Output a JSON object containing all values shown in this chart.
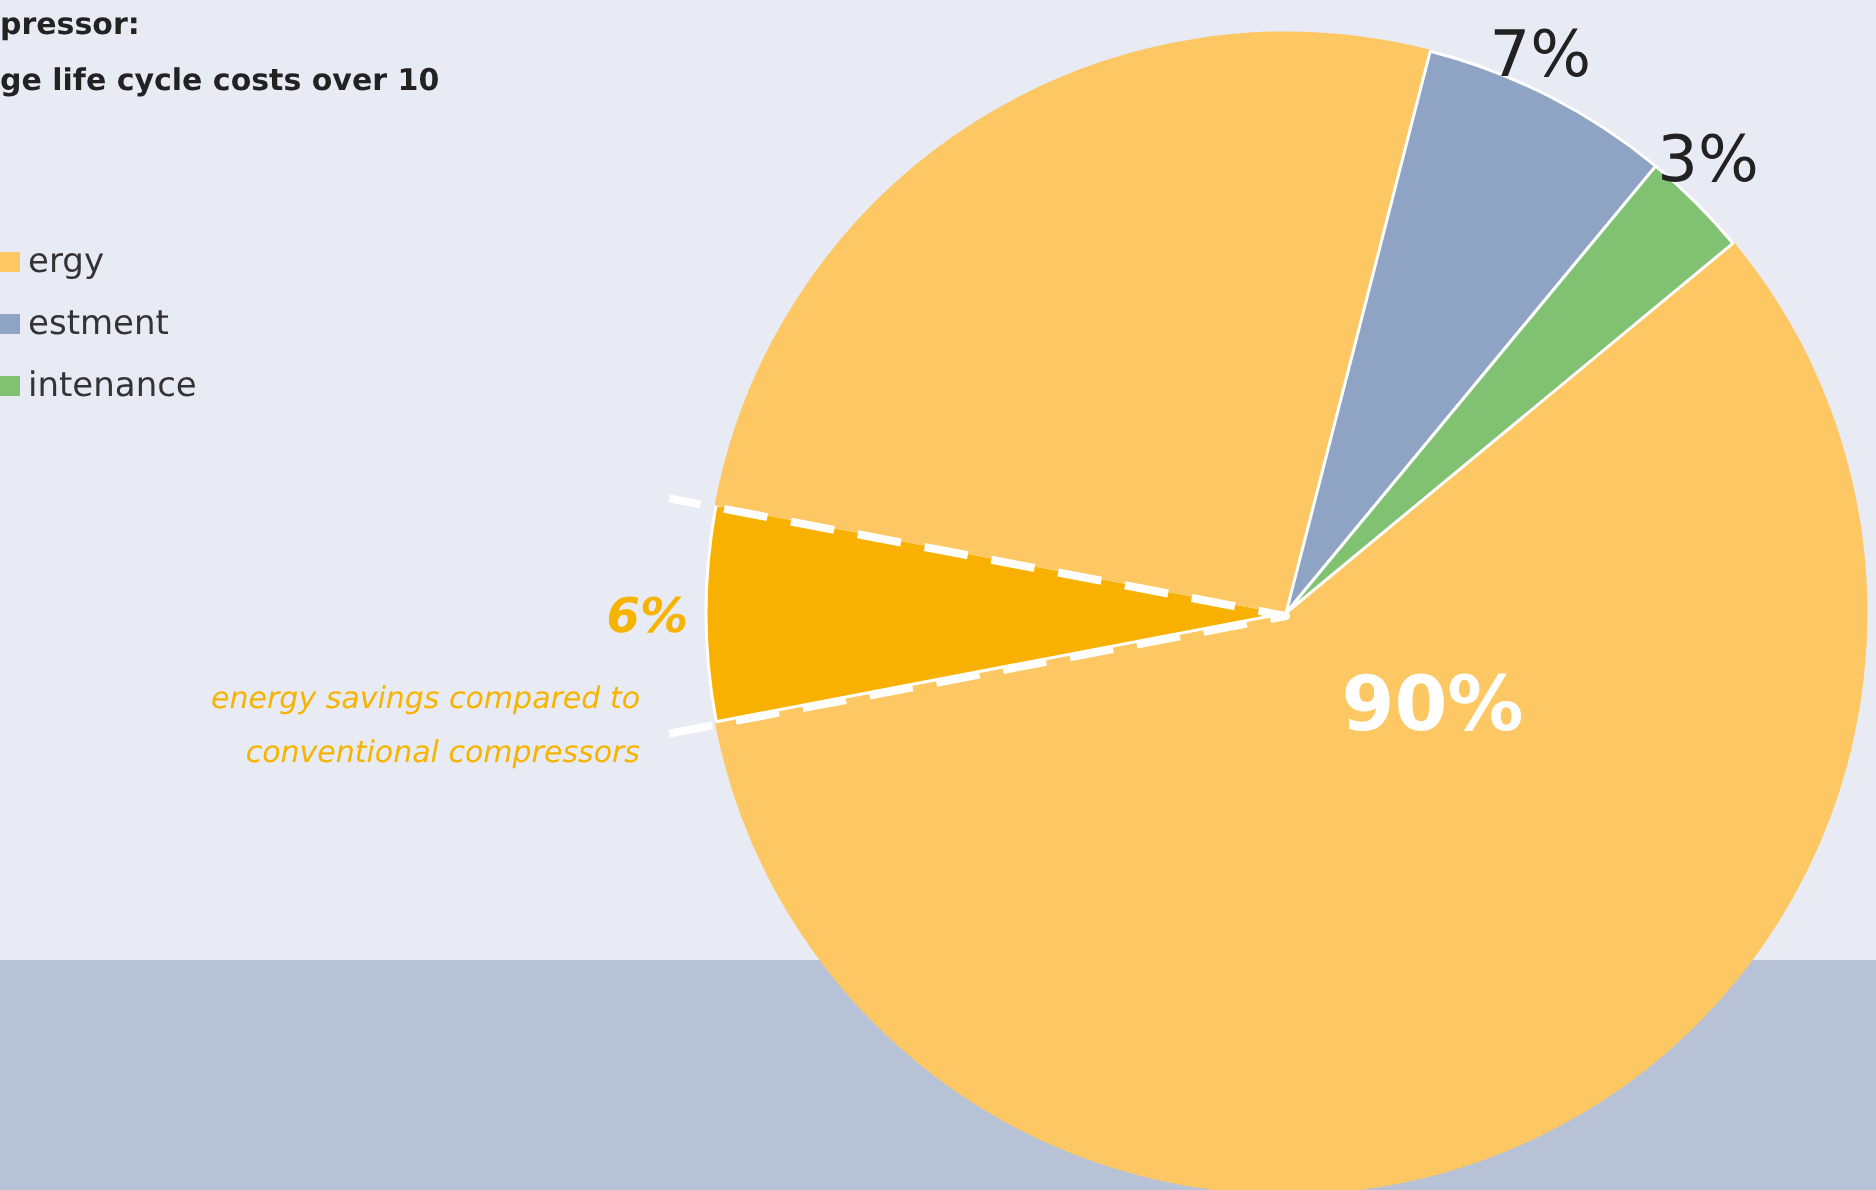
{
  "chart_data": {
    "type": "pie",
    "title": "pressor:\nge life cycle costs over 10",
    "categories": [
      "ergy",
      null,
      null,
      "estment",
      "intenance"
    ],
    "values": [
      58,
      6,
      26,
      7,
      3
    ],
    "colors": [
      "#fdc863",
      "#f8b100",
      "#fdc863",
      "#8fa4c4",
      "#80c272"
    ],
    "value_labels": [
      null,
      "6%",
      null,
      "7%",
      "3%"
    ],
    "legend": "top left",
    "annotations": [
      "90%",
      "energy savings compared to conventional compressors"
    ]
  }
}
